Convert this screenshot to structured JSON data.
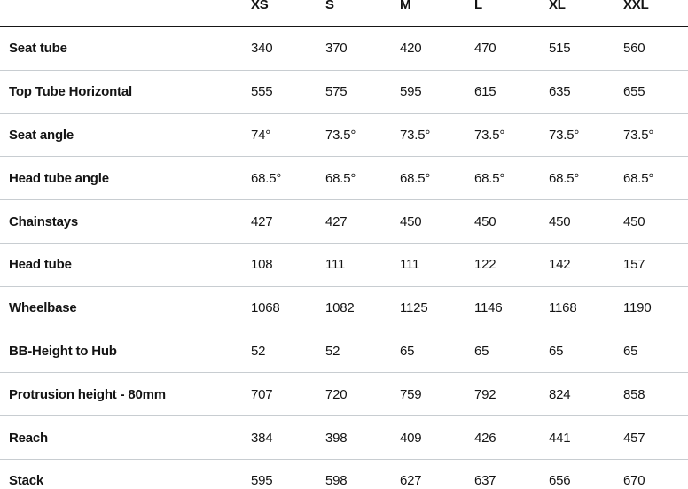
{
  "chart_data": {
    "type": "table",
    "columns": [
      "XS",
      "S",
      "M",
      "L",
      "XL",
      "XXL"
    ],
    "rows": [
      {
        "label": "Seat tube",
        "values": [
          "340",
          "370",
          "420",
          "470",
          "515",
          "560"
        ]
      },
      {
        "label": "Top Tube Horizontal",
        "values": [
          "555",
          "575",
          "595",
          "615",
          "635",
          "655"
        ]
      },
      {
        "label": "Seat angle",
        "values": [
          "74°",
          "73.5°",
          "73.5°",
          "73.5°",
          "73.5°",
          "73.5°"
        ]
      },
      {
        "label": "Head tube angle",
        "values": [
          "68.5°",
          "68.5°",
          "68.5°",
          "68.5°",
          "68.5°",
          "68.5°"
        ]
      },
      {
        "label": "Chainstays",
        "values": [
          "427",
          "427",
          "450",
          "450",
          "450",
          "450"
        ]
      },
      {
        "label": "Head tube",
        "values": [
          "108",
          "111",
          "111",
          "122",
          "142",
          "157"
        ]
      },
      {
        "label": "Wheelbase",
        "values": [
          "1068",
          "1082",
          "1125",
          "1146",
          "1168",
          "1190"
        ]
      },
      {
        "label": "BB-Height to Hub",
        "values": [
          "52",
          "52",
          "65",
          "65",
          "65",
          "65"
        ]
      },
      {
        "label": "Protrusion height - 80mm",
        "values": [
          "707",
          "720",
          "759",
          "792",
          "824",
          "858"
        ]
      },
      {
        "label": "Reach",
        "values": [
          "384",
          "398",
          "409",
          "426",
          "441",
          "457"
        ]
      },
      {
        "label": "Stack",
        "values": [
          "595",
          "598",
          "627",
          "637",
          "656",
          "670"
        ]
      }
    ],
    "layout": {
      "grid": "horizontal-row-dividers",
      "value_alignment": "left",
      "header_position": "top"
    }
  },
  "colors": {
    "background": "#ffffff",
    "text": "#141414",
    "header_divider": "#161616",
    "row_divider": "#c8cdd1"
  }
}
